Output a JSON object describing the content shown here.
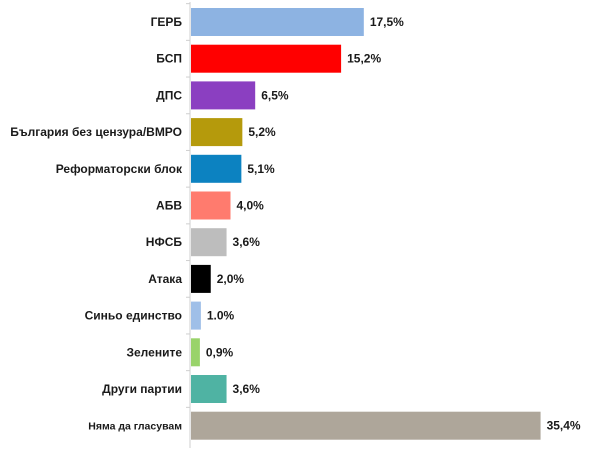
{
  "chart_data": {
    "type": "bar",
    "orientation": "horizontal",
    "categories": [
      "ГЕРБ",
      "БСП",
      "ДПС",
      "България без цензура/ВМРО",
      "Реформаторски блок",
      "АБВ",
      "НФСБ",
      "Атака",
      "Синьо единство",
      "Зелените",
      "Други партии",
      "Няма да гласувам"
    ],
    "values": [
      17.5,
      15.2,
      6.5,
      5.2,
      5.1,
      4.0,
      3.6,
      2.0,
      1.0,
      0.9,
      3.6,
      35.4
    ],
    "value_labels": [
      "17,5%",
      "15,2%",
      "6,5%",
      "5,2%",
      "5,1%",
      "4,0%",
      "3,6%",
      "2,0%",
      "1.0%",
      "0,9%",
      "3,6%",
      "35,4%"
    ],
    "colors": [
      "#8db3e2",
      "#ff0000",
      "#8b3fc1",
      "#b59a0c",
      "#0c82c1",
      "#ff7b6e",
      "#bdbdbd",
      "#000000",
      "#9fbfe8",
      "#99d36a",
      "#4fb3a3",
      "#aea69a"
    ],
    "title": "",
    "xlabel": "",
    "ylabel": "",
    "xlim": [
      0,
      40
    ],
    "grid": false,
    "legend": "none"
  }
}
